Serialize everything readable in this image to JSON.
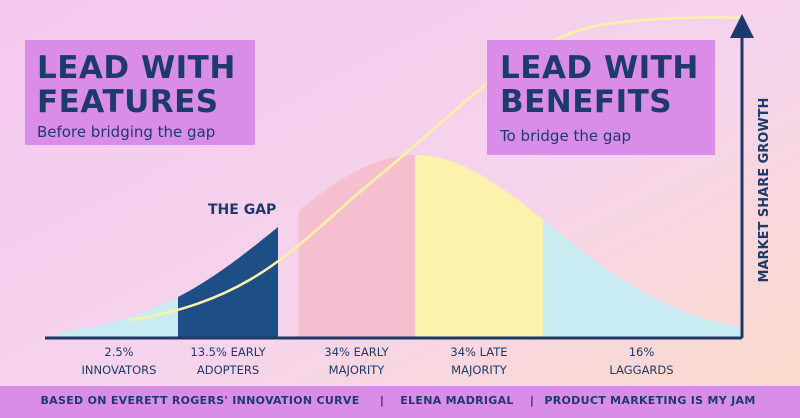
{
  "left_box": {
    "title_lines": [
      "LEAD WITH",
      "FEATURES"
    ],
    "subtitle": "Before bridging the gap"
  },
  "right_box": {
    "title_lines": [
      "LEAD WITH",
      "BENEFITS"
    ],
    "subtitle": "To bridge the gap"
  },
  "gap_label": "THE GAP",
  "axis_label": "MARKET SHARE GROWTH",
  "segments": [
    {
      "lines": [
        "2.5%",
        "INNOVATORS"
      ]
    },
    {
      "lines": [
        "13.5% EARLY",
        "ADOPTERS"
      ]
    },
    {
      "lines": [
        "34% EARLY",
        "MAJORITY"
      ]
    },
    {
      "lines": [
        "34% LATE",
        "MAJORITY"
      ]
    },
    {
      "lines": [
        "16%",
        "LAGGARDS"
      ]
    }
  ],
  "footer": [
    "BASED ON EVERETT ROGERS' INNOVATION CURVE",
    "ELENA MADRIGAL",
    "PRODUCT MARKETING IS MY JAM"
  ]
}
